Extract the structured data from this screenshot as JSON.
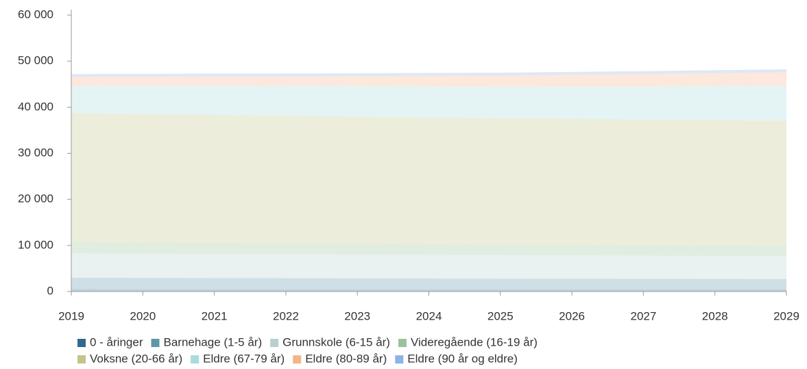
{
  "chart_data": {
    "type": "stacked_area",
    "x": [
      2019,
      2020,
      2021,
      2022,
      2023,
      2024,
      2025,
      2026,
      2027,
      2028,
      2029
    ],
    "xlim": [
      2019,
      2029
    ],
    "xticks": [
      2019,
      2020,
      2021,
      2022,
      2023,
      2024,
      2025,
      2026,
      2027,
      2028,
      2029
    ],
    "ylim": [
      0,
      60000
    ],
    "yticks": [
      0,
      {
        "value": 10000,
        "label": "10 000"
      },
      {
        "value": 20000,
        "label": "20 000"
      },
      {
        "value": 30000,
        "label": "30 000"
      },
      {
        "value": 40000,
        "label": "40 000"
      },
      {
        "value": 50000,
        "label": "50 000"
      },
      {
        "value": 60000,
        "label": "60 000"
      }
    ],
    "grid": false,
    "series": [
      {
        "name": "0 - åringer",
        "color": "#2e6b8c",
        "values": [
          520,
          510,
          500,
          500,
          500,
          490,
          490,
          490,
          480,
          480,
          480
        ]
      },
      {
        "name": "Barnehage (1-5 år)",
        "color": "#5e97a8",
        "values": [
          2480,
          2450,
          2420,
          2390,
          2360,
          2330,
          2300,
          2280,
          2260,
          2240,
          2220
        ]
      },
      {
        "name": "Grunnskole (6-15 år)",
        "color": "#b7cfcf",
        "values": [
          5300,
          5280,
          5250,
          5220,
          5190,
          5160,
          5130,
          5100,
          5070,
          5040,
          5000
        ]
      },
      {
        "name": "Videregående (16-19 år)",
        "color": "#9cc29c",
        "values": [
          2400,
          2420,
          2410,
          2390,
          2370,
          2350,
          2330,
          2320,
          2310,
          2300,
          2300
        ]
      },
      {
        "name": "Voksne (20-66 år)",
        "color": "#c4c48a",
        "values": [
          28000,
          27850,
          27750,
          27650,
          27550,
          27450,
          27350,
          27280,
          27200,
          27120,
          27050
        ]
      },
      {
        "name": "Eldre (67-79 år)",
        "color": "#a6dcdc",
        "values": [
          5950,
          6150,
          6300,
          6450,
          6600,
          6750,
          6900,
          7050,
          7200,
          7400,
          7600
        ]
      },
      {
        "name": "Eldre (80-89 år)",
        "color": "#f4b48a",
        "values": [
          1950,
          2000,
          2050,
          2100,
          2200,
          2300,
          2400,
          2550,
          2700,
          2850,
          2950
        ]
      },
      {
        "name": "Eldre (90 år og eldre)",
        "color": "#8db3e6",
        "values": [
          600,
          600,
          600,
          600,
          600,
          600,
          600,
          600,
          600,
          610,
          620
        ]
      }
    ]
  }
}
